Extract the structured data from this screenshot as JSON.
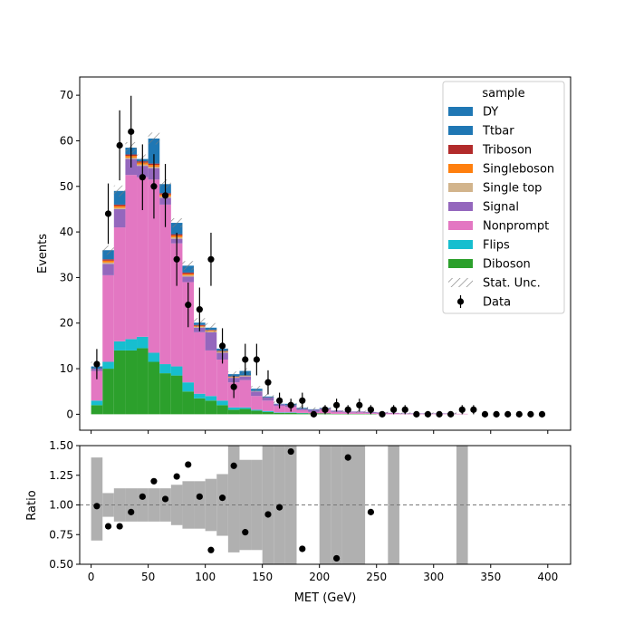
{
  "chart_data": [
    {
      "type": "bar",
      "stacked": true,
      "ylabel": "Events",
      "xlim": [
        -10,
        420
      ],
      "ylim": [
        -3.5,
        74
      ],
      "yticks": [
        0,
        10,
        20,
        30,
        40,
        50,
        60,
        70
      ],
      "bin_edges": [
        0,
        10,
        20,
        30,
        40,
        50,
        60,
        70,
        80,
        90,
        100,
        110,
        120,
        130,
        140,
        150,
        160,
        170,
        180,
        190,
        200,
        210,
        220,
        230,
        240,
        250,
        260,
        270,
        280,
        290,
        300,
        310,
        320,
        330,
        340,
        350,
        360,
        370,
        380,
        390,
        400
      ],
      "series": [
        {
          "name": "Diboson",
          "color": "#2ca02c",
          "values": [
            2,
            10,
            14,
            14,
            14.5,
            11.5,
            9,
            8.5,
            5,
            3.5,
            3,
            2,
            1,
            1.2,
            0.8,
            0.5,
            0.3,
            0.3,
            0.2,
            0.2,
            0.2,
            0.1,
            0.1,
            0.1,
            0.1,
            0,
            0,
            0,
            0,
            0,
            0,
            0,
            0,
            0,
            0,
            0,
            0,
            0,
            0,
            0
          ]
        },
        {
          "name": "Flips",
          "color": "#17becf",
          "values": [
            1,
            1.5,
            2,
            2.5,
            2.5,
            2,
            2,
            2,
            2,
            1,
            1,
            1,
            0.5,
            0.3,
            0.2,
            0.2,
            0.1,
            0.1,
            0.1,
            0,
            0,
            0,
            0,
            0,
            0,
            0,
            0,
            0,
            0,
            0,
            0,
            0,
            0,
            0,
            0,
            0,
            0,
            0,
            0,
            0
          ]
        },
        {
          "name": "Nonprompt",
          "color": "#e377c2",
          "values": [
            6.5,
            19,
            25,
            36,
            35,
            38,
            35,
            27,
            22,
            13.5,
            10,
            9,
            5.5,
            6,
            3,
            2.3,
            1.4,
            1.2,
            0.6,
            0.3,
            0.8,
            0.4,
            0.3,
            0.3,
            0.2,
            0.2,
            0.2,
            0.1,
            0.1,
            0.1,
            0.1,
            0.1,
            0.1,
            0,
            0,
            0,
            0,
            0,
            0,
            0
          ]
        },
        {
          "name": "Signal",
          "color": "#9467bd",
          "values": [
            0.5,
            2.5,
            4,
            3.5,
            2.5,
            2.5,
            1.5,
            1,
            1.2,
            1,
            4,
            1.5,
            1,
            0.8,
            1,
            0.7,
            0.4,
            0.4,
            0.3,
            0.5,
            0.3,
            0.3,
            0.2,
            0.2,
            0.2,
            0.2,
            0.1,
            0.1,
            0.1,
            0.1,
            0.1,
            0.1,
            0,
            0,
            0,
            0,
            0,
            0,
            0,
            0
          ]
        },
        {
          "name": "Single top",
          "color": "#d2b48c",
          "values": [
            0,
            0.3,
            0.3,
            0.3,
            0.3,
            0.3,
            0.3,
            0.3,
            0.3,
            0.2,
            0.2,
            0.2,
            0.1,
            0.1,
            0.1,
            0,
            0,
            0,
            0,
            0,
            0,
            0,
            0,
            0,
            0,
            0,
            0,
            0,
            0,
            0,
            0,
            0,
            0,
            0,
            0,
            0,
            0,
            0,
            0,
            0
          ]
        },
        {
          "name": "Singleboson",
          "color": "#ff7f0e",
          "values": [
            0,
            0.4,
            0.4,
            0.4,
            0.4,
            0.4,
            0.4,
            0.4,
            0.3,
            0.2,
            0.2,
            0.1,
            0.1,
            0.1,
            0,
            0,
            0,
            0,
            0,
            0,
            0,
            0,
            0,
            0,
            0,
            0,
            0,
            0,
            0,
            0,
            0,
            0,
            0,
            0,
            0,
            0,
            0,
            0,
            0,
            0
          ]
        },
        {
          "name": "Triboson",
          "color": "#b22b2b",
          "values": [
            0,
            0.3,
            0.3,
            0.3,
            0.3,
            0.3,
            0.3,
            0.3,
            0.3,
            0.2,
            0.1,
            0.1,
            0.1,
            0,
            0,
            0,
            0,
            0,
            0,
            0,
            0,
            0,
            0,
            0,
            0,
            0,
            0,
            0,
            0,
            0,
            0,
            0,
            0,
            0,
            0,
            0,
            0,
            0,
            0,
            0
          ]
        },
        {
          "name": "Ttbar",
          "color": "#1f77b4",
          "values": [
            0.5,
            2,
            3,
            1.5,
            0.5,
            5.5,
            2,
            2.5,
            1.5,
            0.5,
            0.5,
            0.5,
            0.5,
            1,
            0.5,
            0.2,
            0.1,
            0.3,
            0.2,
            0.1,
            0.1,
            0,
            0,
            0,
            0,
            0,
            0,
            0,
            0,
            0,
            0,
            0,
            0,
            0,
            0,
            0,
            0,
            0,
            0,
            0
          ]
        },
        {
          "name": "DY",
          "color": "#1f77b4",
          "values": [
            0,
            0,
            0,
            0,
            0,
            0,
            0,
            0,
            0,
            0,
            0,
            0,
            0,
            0,
            0,
            0,
            0,
            0,
            0,
            0,
            0,
            0,
            0,
            0,
            0,
            0,
            0,
            0,
            0,
            0,
            0,
            0,
            0,
            0,
            0,
            0,
            0,
            0,
            0,
            0
          ]
        }
      ],
      "stat_unc": {
        "name": "Stat. Unc.",
        "values": [
          1,
          1,
          1.2,
          1.2,
          1,
          1.3,
          1,
          1,
          1,
          1,
          1,
          0.8,
          0.6,
          0.6,
          0.6,
          0.6,
          0.5,
          0.5,
          0.4,
          0.4,
          0.4,
          0.3,
          0.3,
          0.3,
          0.3,
          0.2,
          0.2,
          0.2,
          0.2,
          0.2,
          0.2,
          0.2,
          0.2,
          0.2,
          0.2,
          0.2,
          0.2,
          0.2,
          0.2,
          0.2
        ]
      },
      "data": {
        "name": "Data",
        "x": [
          5,
          15,
          25,
          35,
          45,
          55,
          65,
          75,
          85,
          95,
          105,
          115,
          125,
          135,
          145,
          155,
          165,
          175,
          185,
          195,
          205,
          215,
          225,
          235,
          245,
          255,
          265,
          275,
          285,
          295,
          305,
          315,
          325,
          335,
          345,
          355,
          365,
          375,
          385,
          395
        ],
        "y": [
          11,
          44,
          59,
          62,
          52,
          50,
          48,
          34,
          24,
          23,
          34,
          15,
          6,
          12,
          12,
          7,
          3,
          2,
          3,
          0,
          1,
          2,
          1,
          2,
          1,
          0,
          1,
          1,
          0,
          0,
          0,
          0,
          1,
          1,
          0,
          0,
          0,
          0,
          0,
          0
        ]
      },
      "legend": {
        "title": "sample",
        "position": "top-right"
      }
    },
    {
      "type": "scatter",
      "xlabel": "MET (GeV)",
      "ylabel": "Ratio",
      "xlim": [
        -10,
        420
      ],
      "ylim": [
        0.5,
        1.5
      ],
      "xticks": [
        0,
        50,
        100,
        150,
        200,
        250,
        300,
        350,
        400
      ],
      "yticks": [
        "0.50",
        "0.75",
        "1.00",
        "1.25",
        "1.50"
      ],
      "reference_line": 1.0,
      "band_color": "#b0b0b0",
      "band": {
        "lower": [
          0.7,
          0.9,
          0.86,
          0.86,
          0.86,
          0.86,
          0.86,
          0.83,
          0.8,
          0.8,
          0.78,
          0.74,
          0.6,
          0.62,
          0.62,
          0.5,
          0.5,
          0.5,
          1,
          1,
          0.5,
          0.5,
          0.5,
          0.5,
          1,
          1,
          0.5,
          1,
          1,
          1,
          1,
          1,
          0.5,
          1,
          1,
          1,
          1,
          1,
          1,
          1
        ],
        "upper": [
          1.4,
          1.1,
          1.14,
          1.14,
          1.14,
          1.14,
          1.14,
          1.17,
          1.2,
          1.2,
          1.22,
          1.26,
          1.5,
          1.38,
          1.38,
          1.5,
          1.5,
          1.5,
          1,
          1,
          1.5,
          1.5,
          1.5,
          1.5,
          1,
          1,
          1.5,
          1,
          1,
          1,
          1,
          1,
          1.5,
          1,
          1,
          1,
          1,
          1,
          1,
          1
        ]
      },
      "points": {
        "x": [
          5,
          15,
          25,
          35,
          45,
          55,
          65,
          75,
          85,
          95,
          105,
          115,
          125,
          135,
          155,
          165,
          175,
          185,
          215,
          225,
          245
        ],
        "y": [
          0.99,
          0.82,
          0.82,
          0.94,
          1.07,
          1.2,
          1.05,
          1.24,
          1.34,
          1.07,
          0.62,
          1.06,
          1.33,
          0.77,
          0.92,
          0.98,
          1.45,
          0.63,
          0.55,
          1.4,
          0.94
        ]
      }
    }
  ]
}
